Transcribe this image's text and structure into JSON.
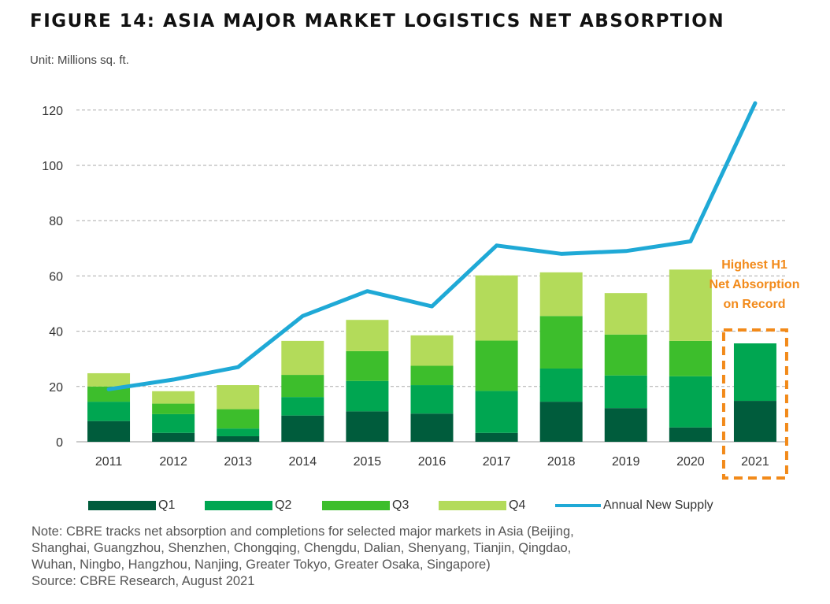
{
  "title": "FIGURE 14: ASIA MAJOR MARKET LOGISTICS NET ABSORPTION",
  "unit": "Unit: Millions sq. ft.",
  "annotation": [
    "Highest H1",
    "Net Absorption",
    "on Record"
  ],
  "note_lines": [
    "Note: CBRE tracks net absorption and completions for selected major markets in Asia (Beijing,",
    "Shanghai, Guangzhou, Shenzhen, Chongqing, Chengdu, Dalian, Shenyang, Tianjin, Qingdao,",
    "Wuhan, Ningbo, Hangzhou, Nanjing, Greater Tokyo, Greater Osaka, Singapore)",
    "Source: CBRE Research, August 2021"
  ],
  "colors": {
    "q1": "#005C3C",
    "q2": "#00A651",
    "q3": "#3DBE2C",
    "q4": "#B3DB5A",
    "supply": "#1FA9D6",
    "highlight": "#F28A1A",
    "grid": "#AAAAAA"
  },
  "chart_data": {
    "type": "bar",
    "stacked": true,
    "categories": [
      "2011",
      "2012",
      "2013",
      "2014",
      "2015",
      "2016",
      "2017",
      "2018",
      "2019",
      "2020",
      "2021"
    ],
    "series": [
      {
        "name": "Q1",
        "values": [
          7.5,
          3.2,
          2.0,
          9.5,
          11.0,
          10.2,
          3.2,
          14.5,
          12.2,
          5.2,
          14.8
        ]
      },
      {
        "name": "Q2",
        "values": [
          7.0,
          6.8,
          2.8,
          6.7,
          11.0,
          10.3,
          15.2,
          12.0,
          11.8,
          18.5,
          20.8
        ]
      },
      {
        "name": "Q3",
        "values": [
          5.5,
          3.8,
          7.0,
          8.0,
          10.8,
          7.0,
          18.2,
          19.0,
          14.8,
          12.8,
          null
        ]
      },
      {
        "name": "Q4",
        "values": [
          4.8,
          4.5,
          8.7,
          12.3,
          11.3,
          11.0,
          23.6,
          15.8,
          15.0,
          25.8,
          null
        ]
      }
    ],
    "lines": [
      {
        "name": "Annual New Supply",
        "values": [
          19.0,
          22.5,
          27.0,
          45.5,
          54.5,
          49.0,
          71.0,
          68.0,
          69.0,
          72.5,
          122.5
        ]
      }
    ],
    "yticks": [
      0,
      20,
      40,
      60,
      80,
      100,
      120
    ],
    "ylim": [
      0,
      125
    ],
    "grid": true,
    "legend_position": "bottom",
    "highlight_category": "2021"
  }
}
